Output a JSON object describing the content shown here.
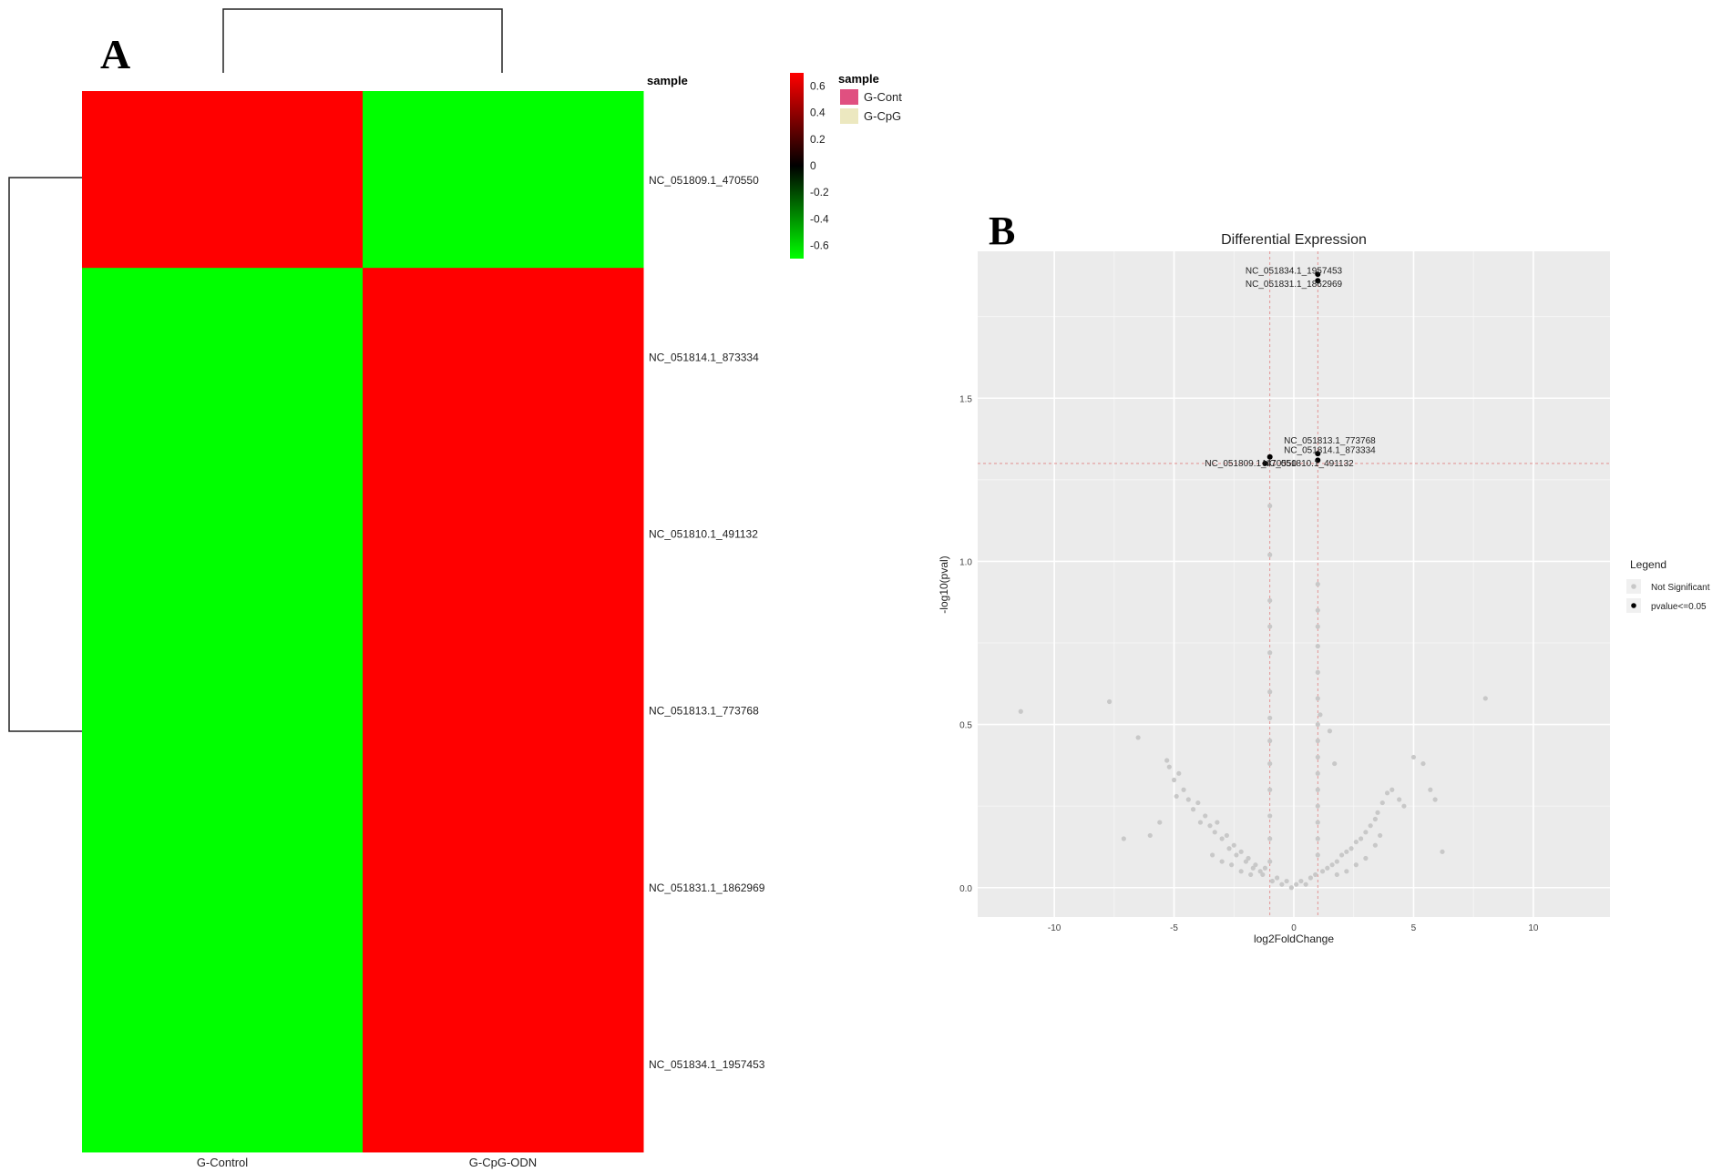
{
  "panels": {
    "a_label": "A",
    "b_label": "B"
  },
  "chart_data": [
    {
      "type": "heatmap",
      "columns": [
        "G-Control",
        "G-CpG-ODN"
      ],
      "rows": [
        "NC_051809.1_470550",
        "NC_051814.1_873334",
        "NC_051810.1_491132",
        "NC_051813.1_773768",
        "NC_051831.1_1862969",
        "NC_051834.1_1957453"
      ],
      "values": [
        [
          0.7,
          -0.7
        ],
        [
          -0.7,
          0.7
        ],
        [
          -0.7,
          0.7
        ],
        [
          -0.7,
          0.7
        ],
        [
          -0.7,
          0.7
        ],
        [
          -0.7,
          0.7
        ]
      ],
      "annotation_header": "sample",
      "colorscale": {
        "min": -0.7,
        "max": 0.7,
        "low": "#00ff00",
        "mid": "#000000",
        "high": "#ff0000",
        "ticks": [
          "0.6",
          "0.4",
          "0.2",
          "0",
          "-0.2",
          "-0.4",
          "-0.6"
        ]
      },
      "legend": {
        "title": "sample",
        "items": [
          {
            "label": "G-Cont",
            "color": "#e05080"
          },
          {
            "label": "G-CpG",
            "color": "#ece8c0"
          }
        ]
      },
      "row_dendrogram": true,
      "column_dendrogram": true
    },
    {
      "type": "scatter",
      "title": "Differential Expression",
      "xlabel": "log2FoldChange",
      "ylabel": "-log10(pval)",
      "xlim": [
        -13.2,
        13.2
      ],
      "ylim": [
        -0.09,
        1.95
      ],
      "xticks": [
        "-10",
        "-5",
        "0",
        "5",
        "10"
      ],
      "yticks": [
        "0.0",
        "0.5",
        "1.0",
        "1.5"
      ],
      "grid": true,
      "thresholds": {
        "x": [
          -1,
          1
        ],
        "y": 1.3
      },
      "legend": {
        "title": "Legend",
        "position": "right",
        "items": [
          {
            "label": "Not Significant",
            "color": "#c8c8c8"
          },
          {
            "label": "pvalue<=0.05",
            "color": "#000000"
          }
        ]
      },
      "series": [
        {
          "name": "Not Significant",
          "points": [
            [
              -11.4,
              0.54
            ],
            [
              -7.7,
              0.57
            ],
            [
              -7.1,
              0.15
            ],
            [
              -6.5,
              0.46
            ],
            [
              -6.0,
              0.16
            ],
            [
              -5.6,
              0.2
            ],
            [
              -5.3,
              0.39
            ],
            [
              -5.2,
              0.37
            ],
            [
              -5.0,
              0.33
            ],
            [
              -4.9,
              0.28
            ],
            [
              -4.8,
              0.35
            ],
            [
              -4.6,
              0.3
            ],
            [
              -4.4,
              0.27
            ],
            [
              -4.2,
              0.24
            ],
            [
              -4.0,
              0.26
            ],
            [
              -3.9,
              0.2
            ],
            [
              -3.7,
              0.22
            ],
            [
              -3.5,
              0.19
            ],
            [
              -3.3,
              0.17
            ],
            [
              -3.2,
              0.2
            ],
            [
              -3.0,
              0.15
            ],
            [
              -2.8,
              0.16
            ],
            [
              -2.7,
              0.12
            ],
            [
              -2.5,
              0.13
            ],
            [
              -2.4,
              0.1
            ],
            [
              -2.2,
              0.11
            ],
            [
              -2.0,
              0.08
            ],
            [
              -1.9,
              0.09
            ],
            [
              -1.7,
              0.06
            ],
            [
              -1.6,
              0.07
            ],
            [
              -1.4,
              0.05
            ],
            [
              -1.3,
              0.04
            ],
            [
              -1.2,
              0.06
            ],
            [
              -0.9,
              0.02
            ],
            [
              -0.7,
              0.03
            ],
            [
              -0.5,
              0.01
            ],
            [
              -0.3,
              0.02
            ],
            [
              -0.1,
              0.0
            ],
            [
              0.1,
              0.01
            ],
            [
              0.3,
              0.02
            ],
            [
              0.5,
              0.01
            ],
            [
              0.7,
              0.03
            ],
            [
              0.9,
              0.04
            ],
            [
              1.2,
              0.05
            ],
            [
              1.4,
              0.06
            ],
            [
              1.6,
              0.07
            ],
            [
              1.8,
              0.08
            ],
            [
              2.0,
              0.1
            ],
            [
              2.2,
              0.11
            ],
            [
              2.4,
              0.12
            ],
            [
              2.6,
              0.14
            ],
            [
              2.8,
              0.15
            ],
            [
              3.0,
              0.17
            ],
            [
              3.2,
              0.19
            ],
            [
              3.4,
              0.21
            ],
            [
              3.5,
              0.23
            ],
            [
              3.7,
              0.26
            ],
            [
              3.9,
              0.29
            ],
            [
              4.1,
              0.3
            ],
            [
              4.4,
              0.27
            ],
            [
              4.6,
              0.25
            ],
            [
              5.0,
              0.4
            ],
            [
              5.4,
              0.38
            ],
            [
              5.7,
              0.3
            ],
            [
              5.9,
              0.27
            ],
            [
              6.2,
              0.11
            ],
            [
              8.0,
              0.58
            ],
            [
              -3.4,
              0.1
            ],
            [
              -3.0,
              0.08
            ],
            [
              -2.6,
              0.07
            ],
            [
              -2.2,
              0.05
            ],
            [
              -1.8,
              0.04
            ],
            [
              1.8,
              0.04
            ],
            [
              2.2,
              0.05
            ],
            [
              2.6,
              0.07
            ],
            [
              3.0,
              0.09
            ],
            [
              3.4,
              0.13
            ],
            [
              3.6,
              0.16
            ],
            [
              1.0,
              0.93
            ],
            [
              1.0,
              0.85
            ],
            [
              1.0,
              0.8
            ],
            [
              1.0,
              0.74
            ],
            [
              1.0,
              0.66
            ],
            [
              1.0,
              0.58
            ],
            [
              1.0,
              0.5
            ],
            [
              1.0,
              0.45
            ],
            [
              1.0,
              0.4
            ],
            [
              1.0,
              0.35
            ],
            [
              1.0,
              0.3
            ],
            [
              1.0,
              0.25
            ],
            [
              1.0,
              0.2
            ],
            [
              1.0,
              0.15
            ],
            [
              1.0,
              0.1
            ],
            [
              -1.0,
              1.17
            ],
            [
              -1.0,
              1.02
            ],
            [
              -1.0,
              0.88
            ],
            [
              -1.0,
              0.8
            ],
            [
              -1.0,
              0.72
            ],
            [
              -1.0,
              0.6
            ],
            [
              -1.0,
              0.52
            ],
            [
              -1.0,
              0.45
            ],
            [
              -1.0,
              0.38
            ],
            [
              -1.0,
              0.3
            ],
            [
              -1.0,
              0.22
            ],
            [
              -1.0,
              0.15
            ],
            [
              -1.0,
              0.08
            ],
            [
              1.1,
              0.53
            ],
            [
              1.5,
              0.48
            ],
            [
              1.7,
              0.38
            ]
          ]
        },
        {
          "name": "pvalue<=0.05",
          "points": [
            [
              1.0,
              1.88
            ],
            [
              1.0,
              1.86
            ],
            [
              1.0,
              1.33
            ],
            [
              1.0,
              1.31
            ],
            [
              -1.0,
              1.32
            ],
            [
              -1.2,
              1.3
            ]
          ]
        }
      ],
      "annotations": [
        {
          "text": "NC_051834.1_1957453",
          "x": 0.0,
          "y": 1.89
        },
        {
          "text": "NC_051831.1_1862969",
          "x": 0.0,
          "y": 1.85
        },
        {
          "text": "NC_051813.1_773768",
          "x": 1.5,
          "y": 1.37
        },
        {
          "text": "NC_051814.1_873334",
          "x": 1.5,
          "y": 1.34
        },
        {
          "text": "NC_051809.1_470550",
          "x": -1.8,
          "y": 1.3
        },
        {
          "text": "NC_051810.1_491132",
          "x": 0.6,
          "y": 1.3
        }
      ]
    }
  ]
}
